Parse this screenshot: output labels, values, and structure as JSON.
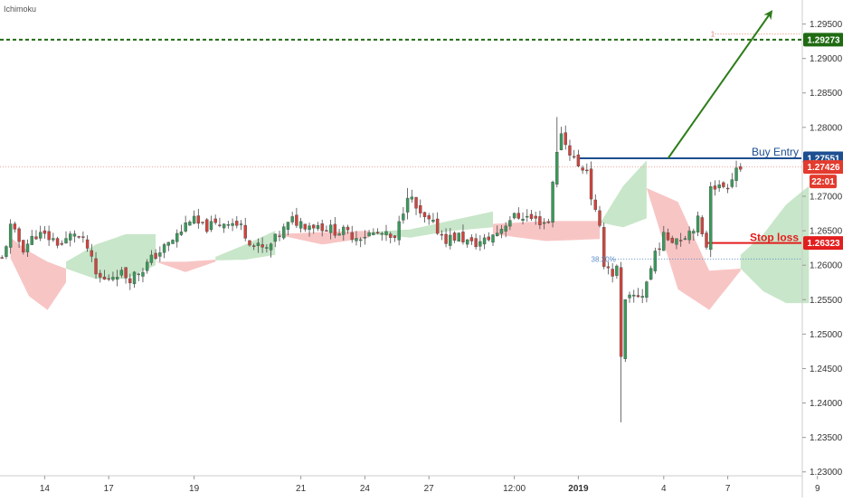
{
  "indicator_label": "Ichimoku",
  "chart_data": {
    "type": "candlestick",
    "title": "",
    "xlabel": "",
    "ylabel": "",
    "ylim": [
      1.2297,
      1.2977
    ],
    "y_ticks": [
      1.295,
      1.29,
      1.285,
      1.28,
      1.275,
      1.27,
      1.265,
      1.26,
      1.255,
      1.25,
      1.245,
      1.24,
      1.235,
      1.23
    ],
    "y_tick_labels": [
      "1.29500",
      "1.29000",
      "1.28500",
      "1.28000",
      "1.27500",
      "1.27000",
      "1.26500",
      "1.26000",
      "1.25500",
      "1.25000",
      "1.24500",
      "1.24000",
      "1.23500",
      "1.23000"
    ],
    "x_tick_labels": [
      {
        "bar": 10,
        "label": "14",
        "bold": false
      },
      {
        "bar": 25,
        "label": "17",
        "bold": false
      },
      {
        "bar": 45,
        "label": "19",
        "bold": false
      },
      {
        "bar": 70,
        "label": "21",
        "bold": false
      },
      {
        "bar": 85,
        "label": "24",
        "bold": false
      },
      {
        "bar": 100,
        "label": "27",
        "bold": false
      },
      {
        "bar": 120,
        "label": "12:00",
        "bold": false
      },
      {
        "bar": 135,
        "label": "2019",
        "bold": true
      },
      {
        "bar": 155,
        "label": "4",
        "bold": false
      },
      {
        "bar": 170,
        "label": "7",
        "bold": false
      },
      {
        "bar": 191,
        "label": "9",
        "bold": false
      }
    ],
    "levels": {
      "target": {
        "value": 1.29273,
        "label": "1.29273",
        "color": "#1f6b12"
      },
      "fib_1": {
        "value": 1.29355,
        "label": "1",
        "color": "#e07b6b"
      },
      "buy_entry": {
        "value": 1.27551,
        "label": "1.27551",
        "text": "Buy Entry",
        "color": "#1d4f91"
      },
      "current_price": {
        "value": 1.27426,
        "label": "1.27426",
        "time": "22:01",
        "color": "#e33b2e"
      },
      "stop_loss": {
        "value": 1.26323,
        "label": "1.26323",
        "text": "Stop loss",
        "color": "#e31e1e"
      },
      "fib_382": {
        "value": 1.2609,
        "label": "38.20%",
        "color": "#5b8cc9"
      }
    },
    "candles": {
      "count": 174,
      "anchors": [
        [
          0,
          1.2608
        ],
        [
          2,
          1.2655
        ],
        [
          5,
          1.2625
        ],
        [
          8,
          1.2645
        ],
        [
          11,
          1.264
        ],
        [
          14,
          1.263
        ],
        [
          17,
          1.2648
        ],
        [
          20,
          1.2625
        ],
        [
          22,
          1.2585
        ],
        [
          24,
          1.2578
        ],
        [
          27,
          1.259
        ],
        [
          30,
          1.2582
        ],
        [
          33,
          1.2595
        ],
        [
          36,
          1.2615
        ],
        [
          39,
          1.263
        ],
        [
          42,
          1.265
        ],
        [
          44,
          1.2668
        ],
        [
          47,
          1.2655
        ],
        [
          50,
          1.2658
        ],
        [
          53,
          1.2665
        ],
        [
          56,
          1.2655
        ],
        [
          59,
          1.2628
        ],
        [
          62,
          1.2622
        ],
        [
          65,
          1.2645
        ],
        [
          68,
          1.2665
        ],
        [
          71,
          1.266
        ],
        [
          74,
          1.2658
        ],
        [
          77,
          1.2652
        ],
        [
          80,
          1.2648
        ],
        [
          83,
          1.2642
        ],
        [
          86,
          1.2645
        ],
        [
          89,
          1.2645
        ],
        [
          92,
          1.2635
        ],
        [
          95,
          1.2705
        ],
        [
          98,
          1.267
        ],
        [
          101,
          1.2658
        ],
        [
          104,
          1.2638
        ],
        [
          107,
          1.2642
        ],
        [
          110,
          1.263
        ],
        [
          113,
          1.2635
        ],
        [
          116,
          1.2648
        ],
        [
          119,
          1.2668
        ],
        [
          122,
          1.2672
        ],
        [
          125,
          1.2665
        ],
        [
          128,
          1.2662
        ],
        [
          129,
          1.2725
        ],
        [
          131,
          1.2795
        ],
        [
          132,
          1.2775
        ],
        [
          134,
          1.2755
        ],
        [
          135,
          1.2742
        ],
        [
          137,
          1.274
        ],
        [
          138,
          1.27
        ],
        [
          140,
          1.265
        ],
        [
          141,
          1.2605
        ],
        [
          143,
          1.2588
        ],
        [
          144,
          1.2595
        ],
        [
          145,
          1.2462
        ],
        [
          146,
          1.2545
        ],
        [
          148,
          1.2555
        ],
        [
          150,
          1.2558
        ],
        [
          152,
          1.2595
        ],
        [
          153,
          1.262
        ],
        [
          155,
          1.264
        ],
        [
          157,
          1.264
        ],
        [
          159,
          1.264
        ],
        [
          161,
          1.265
        ],
        [
          163,
          1.2665
        ],
        [
          164,
          1.264
        ],
        [
          165,
          1.2629
        ],
        [
          166,
          1.272
        ],
        [
          168,
          1.2712
        ],
        [
          170,
          1.2718
        ],
        [
          172,
          1.2742
        ],
        [
          173,
          1.2742
        ]
      ],
      "spikes": [
        {
          "bar": 130,
          "high": 1.2815
        },
        {
          "bar": 145,
          "low": 1.2372
        },
        {
          "bar": 143,
          "low": 1.2575
        },
        {
          "bar": 95,
          "high": 1.2712
        }
      ]
    },
    "cloud": {
      "kumo_bull_color": "#c8e6c9",
      "kumo_bear_color": "#f8c5c5",
      "segments": [
        {
          "from": 2,
          "to": 15,
          "sign": "bear",
          "a": [
            1.264,
            1.262,
            1.2605,
            1.2595
          ],
          "b": [
            1.261,
            1.2555,
            1.2535,
            1.2575
          ]
        },
        {
          "from": 15,
          "to": 36,
          "sign": "bull",
          "a": [
            1.2605,
            1.263,
            1.2645,
            1.2645
          ],
          "b": [
            1.2595,
            1.258,
            1.258,
            1.26
          ]
        },
        {
          "from": 36,
          "to": 50,
          "sign": "bear",
          "a": [
            1.2605,
            1.2605,
            1.2608
          ],
          "b": [
            1.2605,
            1.259,
            1.2605
          ]
        },
        {
          "from": 50,
          "to": 64,
          "sign": "bull",
          "a": [
            1.2612,
            1.263,
            1.265
          ],
          "b": [
            1.2607,
            1.2608,
            1.2615
          ]
        },
        {
          "from": 64,
          "to": 86,
          "sign": "bear",
          "a": [
            1.2645,
            1.2648,
            1.265
          ],
          "b": [
            1.2645,
            1.263,
            1.264
          ]
        },
        {
          "from": 86,
          "to": 115,
          "sign": "bull",
          "a": [
            1.2648,
            1.2652,
            1.2665,
            1.2678
          ],
          "b": [
            1.2645,
            1.264,
            1.265,
            1.2655
          ]
        },
        {
          "from": 115,
          "to": 140,
          "sign": "bear",
          "a": [
            1.266,
            1.2664,
            1.2664
          ],
          "b": [
            1.2645,
            1.2635,
            1.2638
          ]
        },
        {
          "from": 140,
          "to": 151,
          "sign": "bull",
          "a": [
            1.266,
            1.2715,
            1.2752
          ],
          "b": [
            1.2662,
            1.2655,
            1.2668
          ]
        },
        {
          "from": 151,
          "to": 173,
          "sign": "bear",
          "a": [
            1.2712,
            1.2692,
            1.2592,
            1.2595
          ],
          "b": [
            1.2712,
            1.2565,
            1.2535,
            1.2592
          ]
        },
        {
          "from": 173,
          "to": 189,
          "sign": "bull",
          "a": [
            1.2615,
            1.2645,
            1.2688,
            1.2715
          ],
          "b": [
            1.2595,
            1.2562,
            1.2545,
            1.2545
          ]
        }
      ]
    },
    "projection_arrow": {
      "from_bar": 156,
      "from_value": 1.2755,
      "to_bar": 180,
      "to_value": 1.2966,
      "color": "#2e7d1a"
    }
  }
}
